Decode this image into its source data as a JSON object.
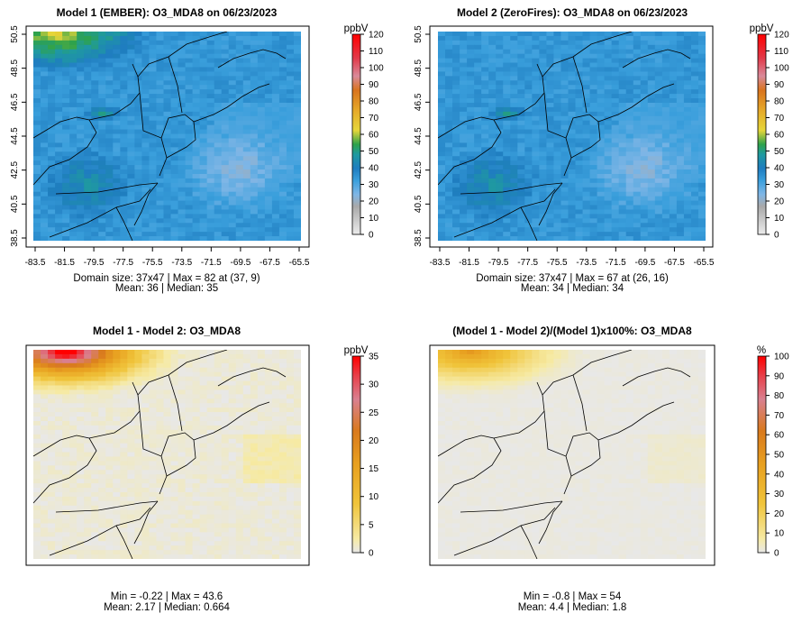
{
  "chart_data": [
    {
      "type": "heatmap",
      "title": "Model 1 (EMBER): O3_MDA8 on 06/23/2023",
      "unit": "ppbV",
      "xticks": [
        "-83.5",
        "-81.5",
        "-79.5",
        "-77.5",
        "-75.5",
        "-73.5",
        "-71.5",
        "-69.5",
        "-67.5",
        "-65.5"
      ],
      "yticks": [
        "38.5",
        "40.5",
        "42.5",
        "44.5",
        "46.5",
        "48.5",
        "50.5"
      ],
      "colorbar": {
        "min": 0,
        "max": 120,
        "ticks": [
          "0",
          "10",
          "20",
          "30",
          "40",
          "50",
          "60",
          "70",
          "80",
          "90",
          "100",
          "110",
          "120"
        ]
      },
      "palette": "absolute",
      "stats": [
        "Domain size: 37x47 | Max = 82 at (37, 9)",
        "Mean: 36 |  Median: 35"
      ]
    },
    {
      "type": "heatmap",
      "title": "Model 2 (ZeroFires): O3_MDA8 on 06/23/2023",
      "unit": "ppbV",
      "xticks": [
        "-83.5",
        "-81.5",
        "-79.5",
        "-77.5",
        "-75.5",
        "-73.5",
        "-71.5",
        "-69.5",
        "-67.5",
        "-65.5"
      ],
      "yticks": [
        "38.5",
        "40.5",
        "42.5",
        "44.5",
        "46.5",
        "48.5",
        "50.5"
      ],
      "colorbar": {
        "min": 0,
        "max": 120,
        "ticks": [
          "0",
          "10",
          "20",
          "30",
          "40",
          "50",
          "60",
          "70",
          "80",
          "90",
          "100",
          "110",
          "120"
        ]
      },
      "palette": "absolute",
      "stats": [
        "Domain size: 37x47 | Max = 67 at (26, 16)",
        "Mean: 34 |  Median: 34"
      ]
    },
    {
      "type": "heatmap",
      "title": "Model 1 - Model 2: O3_MDA8",
      "unit": "ppbV",
      "xticks": [],
      "yticks": [],
      "colorbar": {
        "min": 0,
        "max": 35,
        "ticks": [
          "0",
          "5",
          "10",
          "15",
          "20",
          "25",
          "30",
          "35"
        ]
      },
      "palette": "difference",
      "stats": [
        "Min = -0.22 | Max = 43.6",
        "Mean: 2.17 |  Median: 0.664"
      ]
    },
    {
      "type": "heatmap",
      "title": "(Model 1 - Model 2)/(Model 1)x100%: O3_MDA8",
      "unit": "%",
      "xticks": [],
      "yticks": [],
      "colorbar": {
        "min": 0,
        "max": 100,
        "ticks": [
          "0",
          "10",
          "20",
          "30",
          "40",
          "50",
          "60",
          "70",
          "80",
          "90",
          "100"
        ]
      },
      "palette": "difference",
      "stats": [
        "Min = -0.8 | Max = 54",
        "Mean: 4.4 |  Median: 1.8"
      ]
    }
  ]
}
